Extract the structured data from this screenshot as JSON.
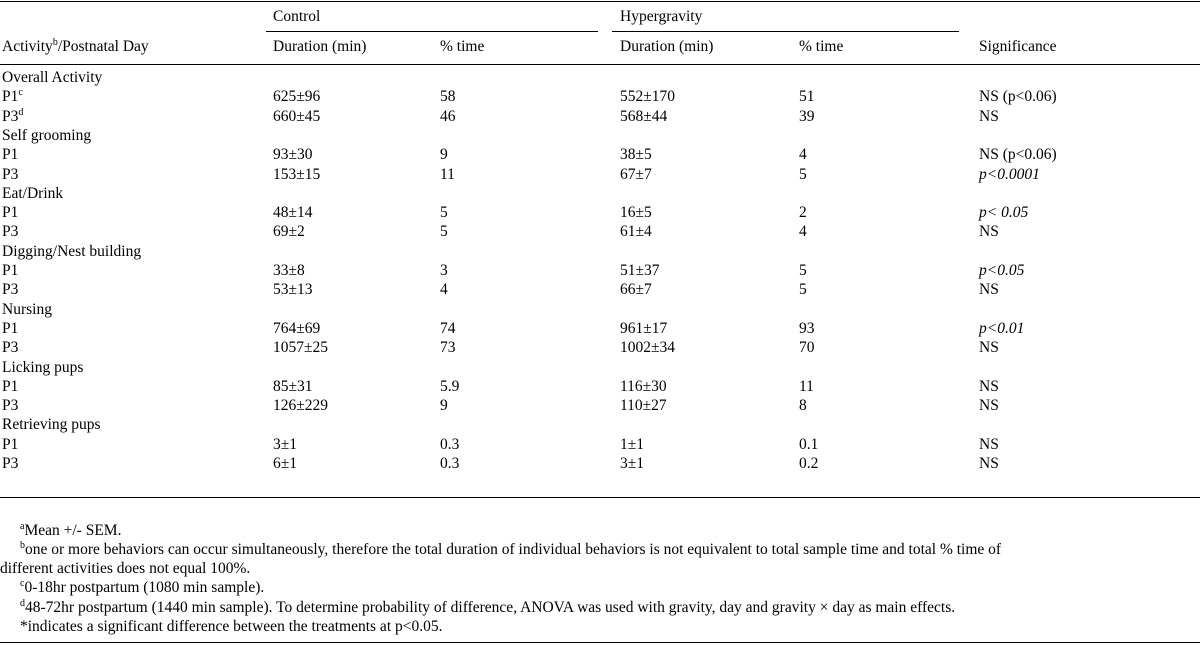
{
  "header": {
    "activity_col": "Activity",
    "activity_sup": "b",
    "activity_suffix": "/Postnatal Day",
    "group_control": "Control",
    "group_hyper": "Hypergravity",
    "duration_label": "Duration (min)",
    "percent_label": "% time",
    "significance_label": "Significance"
  },
  "rows": [
    {
      "type": "group",
      "label": "Overall Activity"
    },
    {
      "type": "data",
      "day": "P1",
      "sup": "c",
      "ctrl_dur": "625±96",
      "ctrl_pct": "58",
      "hyp_dur": "552±170",
      "hyp_pct": "51",
      "sig": "NS (p<0.06)",
      "sig_italic": false
    },
    {
      "type": "data",
      "day": "P3",
      "sup": "d",
      "ctrl_dur": "660±45",
      "ctrl_pct": "46",
      "hyp_dur": "568±44",
      "hyp_pct": "39",
      "sig": "NS",
      "sig_italic": false
    },
    {
      "type": "group",
      "label": "Self grooming"
    },
    {
      "type": "data",
      "day": "P1",
      "sup": "",
      "ctrl_dur": "93±30",
      "ctrl_pct": "9",
      "hyp_dur": "38±5",
      "hyp_pct": "4",
      "sig": "NS (p<0.06)",
      "sig_italic": false
    },
    {
      "type": "data",
      "day": "P3",
      "sup": "",
      "ctrl_dur": "153±15",
      "ctrl_pct": "11",
      "hyp_dur": "67±7",
      "hyp_pct": "5",
      "sig": "p<0.0001",
      "sig_italic": true
    },
    {
      "type": "group",
      "label": "Eat/Drink"
    },
    {
      "type": "data",
      "day": "P1",
      "sup": "",
      "ctrl_dur": "48±14",
      "ctrl_pct": "5",
      "hyp_dur": "16±5",
      "hyp_pct": "2",
      "sig": "p< 0.05",
      "sig_italic": true
    },
    {
      "type": "data",
      "day": "P3",
      "sup": "",
      "ctrl_dur": "69±2",
      "ctrl_pct": "5",
      "hyp_dur": "61±4",
      "hyp_pct": "4",
      "sig": "NS",
      "sig_italic": false
    },
    {
      "type": "group",
      "label": "Digging/Nest building"
    },
    {
      "type": "data",
      "day": "P1",
      "sup": "",
      "ctrl_dur": "33±8",
      "ctrl_pct": "3",
      "hyp_dur": "51±37",
      "hyp_pct": "5",
      "sig": "p<0.05",
      "sig_italic": true
    },
    {
      "type": "data",
      "day": "P3",
      "sup": "",
      "ctrl_dur": "53±13",
      "ctrl_pct": "4",
      "hyp_dur": "66±7",
      "hyp_pct": "5",
      "sig": "NS",
      "sig_italic": false
    },
    {
      "type": "group",
      "label": "Nursing"
    },
    {
      "type": "data",
      "day": "P1",
      "sup": "",
      "ctrl_dur": "764±69",
      "ctrl_pct": "74",
      "hyp_dur": "961±17",
      "hyp_pct": "93",
      "sig": "p<0.01",
      "sig_italic": true
    },
    {
      "type": "data",
      "day": "P3",
      "sup": "",
      "ctrl_dur": "1057±25",
      "ctrl_pct": "73",
      "hyp_dur": "1002±34",
      "hyp_pct": "70",
      "sig": "NS",
      "sig_italic": false
    },
    {
      "type": "group",
      "label": "Licking pups"
    },
    {
      "type": "data",
      "day": "P1",
      "sup": "",
      "ctrl_dur": "85±31",
      "ctrl_pct": "5.9",
      "hyp_dur": "116±30",
      "hyp_pct": "11",
      "sig": "NS",
      "sig_italic": false
    },
    {
      "type": "data",
      "day": "P3",
      "sup": "",
      "ctrl_dur": "126±229",
      "ctrl_pct": "9",
      "hyp_dur": "110±27",
      "hyp_pct": "8",
      "sig": "NS",
      "sig_italic": false
    },
    {
      "type": "group",
      "label": "Retrieving pups"
    },
    {
      "type": "data",
      "day": "P1",
      "sup": "",
      "ctrl_dur": "3±1",
      "ctrl_pct": "0.3",
      "hyp_dur": "1±1",
      "hyp_pct": "0.1",
      "sig": "NS",
      "sig_italic": false
    },
    {
      "type": "data",
      "day": "P3",
      "sup": "",
      "ctrl_dur": "6±1",
      "ctrl_pct": "0.3",
      "hyp_dur": "3±1",
      "hyp_pct": "0.2",
      "sig": "NS",
      "sig_italic": false
    }
  ],
  "footnotes": {
    "a_mark": "a",
    "a_text": "Mean +/- SEM.",
    "b_mark": "b",
    "b_text_1": "one or more behaviors can occur simultaneously, therefore the total duration of individual behaviors is not equivalent to total sample time and total % time of",
    "b_text_2": "different activities does not equal 100%.",
    "c_mark": "c",
    "c_text": "0-18hr postpartum (1080 min sample).",
    "d_mark": "d",
    "d_text": "48-72hr postpartum (1440 min sample). To determine probability of difference, ANOVA was used with gravity, day and gravity × day as main effects.",
    "star_text": "*indicates a significant difference between the treatments at p<0.05."
  }
}
